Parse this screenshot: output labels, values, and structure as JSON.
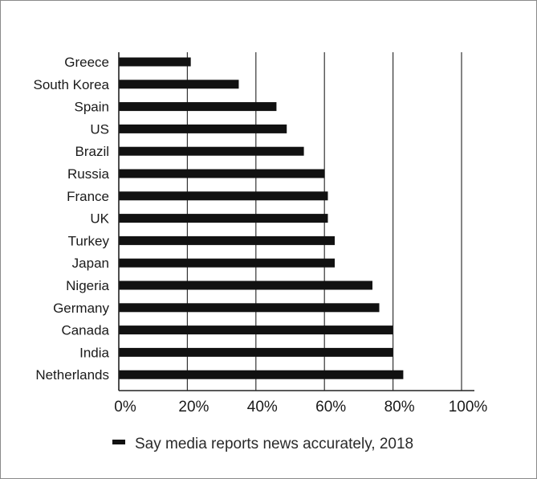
{
  "chart_data": {
    "type": "bar",
    "orientation": "horizontal",
    "categories": [
      "Greece",
      "South Korea",
      "Spain",
      "US",
      "Brazil",
      "Russia",
      "France",
      "UK",
      "Turkey",
      "Japan",
      "Nigeria",
      "Germany",
      "Canada",
      "India",
      "Netherlands"
    ],
    "series": [
      {
        "name": "Say media reports news accurately, 2018",
        "values": [
          21,
          35,
          46,
          49,
          54,
          60,
          61,
          61,
          63,
          63,
          74,
          76,
          80,
          80,
          83
        ],
        "color": "#111111"
      }
    ],
    "xlim": [
      0,
      100
    ],
    "x_ticks": [
      0,
      20,
      40,
      60,
      80,
      100
    ],
    "x_tick_labels": [
      "0%",
      "20%",
      "40%",
      "60%",
      "80%",
      "100%"
    ],
    "grid": "vertical",
    "legend_position": "bottom",
    "title": "",
    "xlabel": "",
    "ylabel": ""
  }
}
